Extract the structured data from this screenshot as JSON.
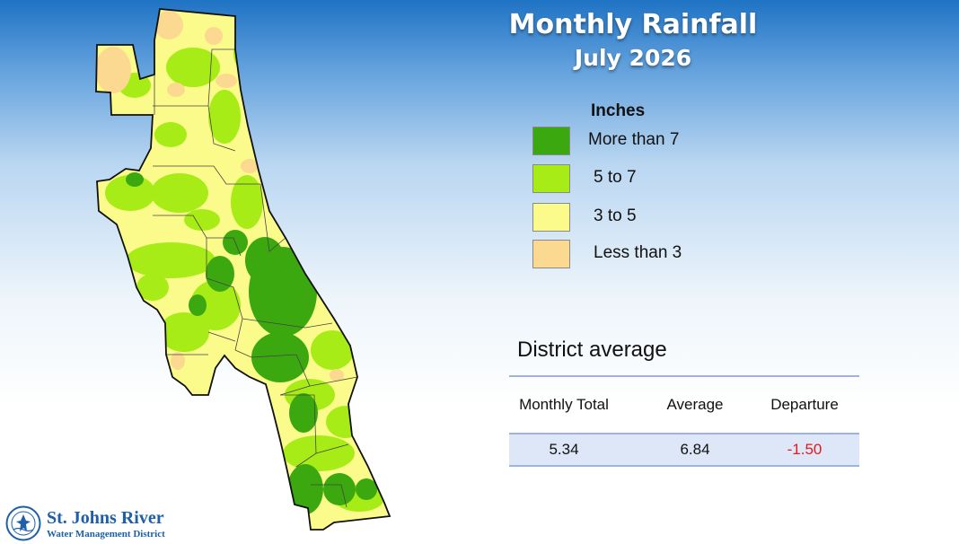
{
  "title": "Monthly Rainfall",
  "subtitle": "July 2026",
  "legend": {
    "heading": "Inches",
    "items": [
      {
        "label": "More than 7",
        "color": "#3ca80f"
      },
      {
        "label": "5 to 7",
        "color": "#a7ec17"
      },
      {
        "label": "3 to 5",
        "color": "#fbfb8c"
      },
      {
        "label": "Less than 3",
        "color": "#fcd990"
      }
    ]
  },
  "district": {
    "title": "District average",
    "headers": [
      "Monthly Total",
      "Average",
      "Departure"
    ],
    "values": [
      "5.34",
      "6.84",
      "-1.50"
    ]
  },
  "logo": {
    "name": "St. Johns River",
    "tagline": "Water Management District"
  }
}
